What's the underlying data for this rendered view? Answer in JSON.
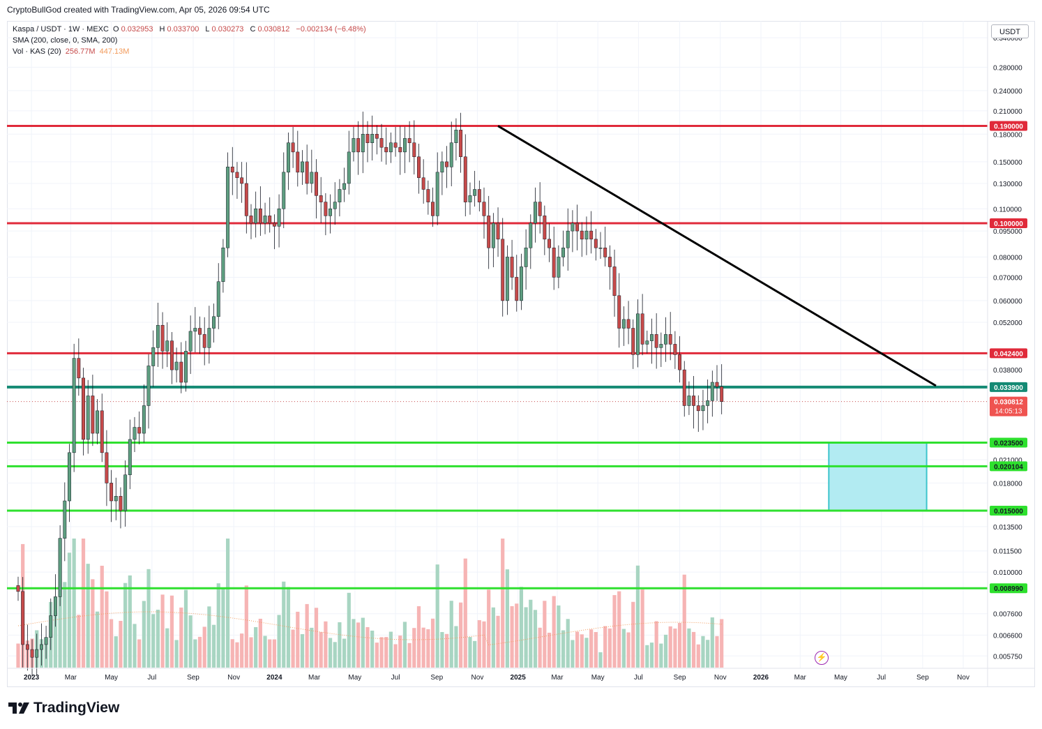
{
  "header": {
    "caption": "CryptoBullGod created with TradingView.com, Apr 05, 2026 09:54 UTC"
  },
  "legend": {
    "symbol_line": "Kaspa / USDT · 1W · MEXC",
    "open_label": "O",
    "open": "0.032953",
    "high_label": "H",
    "high": "0.033700",
    "low_label": "L",
    "low": "0.030273",
    "close_label": "C",
    "close": "0.030812",
    "change": "−0.002134 (−6.48%)",
    "sma_line": "SMA (200, close, 0, SMA, 200)",
    "vol_label": "Vol · KAS (20)",
    "vol_value": "256.77M",
    "vol_ma": "447.13M"
  },
  "price_scale": {
    "currency": "USDT",
    "countdown": "14:05:13"
  },
  "brand": {
    "name": "TradingView"
  },
  "colors": {
    "up": "#5e9e80",
    "down": "#c64a4a",
    "resistance": "#e02a3a",
    "support": "#2ee02e",
    "pivot": "#148a74",
    "box_fill": "#b2ebf2",
    "box_stroke": "#3dc4cc",
    "trendline": "#000000",
    "vol_up": "#a8d5c2",
    "vol_down": "#f6b4b4",
    "vol_ma": "#f29a5a"
  },
  "chart_data": {
    "type": "candlestick",
    "title": "Kaspa / USDT · 1W · MEXC",
    "y_scale": "log",
    "y_range": [
      0.0053,
      0.38
    ],
    "x_labels": [
      "2023",
      "Mar",
      "May",
      "Jul",
      "Sep",
      "Nov",
      "2024",
      "Mar",
      "May",
      "Jul",
      "Sep",
      "Nov",
      "2025",
      "Mar",
      "May",
      "Jul",
      "Sep",
      "Nov",
      "2026",
      "Mar",
      "May",
      "Jul",
      "Sep",
      "Nov"
    ],
    "y_ticks": [
      "0.340000",
      "0.280000",
      "0.240000",
      "0.210000",
      "0.180000",
      "0.150000",
      "0.130000",
      "0.110000",
      "0.095000",
      "0.080000",
      "0.070000",
      "0.060000",
      "0.052000",
      "0.038000",
      "0.021000",
      "0.018000",
      "0.013500",
      "0.011500",
      "0.010000",
      "0.007600",
      "0.006600",
      "0.005750"
    ],
    "horizontal_levels": [
      {
        "price": 0.19,
        "label": "0.190000",
        "role": "resistance"
      },
      {
        "price": 0.1,
        "label": "0.100000",
        "role": "resistance"
      },
      {
        "price": 0.0424,
        "label": "0.042400",
        "role": "resistance"
      },
      {
        "price": 0.0339,
        "label": "0.033900",
        "role": "pivot"
      },
      {
        "price": 0.0235,
        "label": "0.023500",
        "role": "support"
      },
      {
        "price": 0.020104,
        "label": "0.020104",
        "role": "support"
      },
      {
        "price": 0.015,
        "label": "0.015000",
        "role": "support"
      },
      {
        "price": 0.00899,
        "label": "0.008990",
        "role": "support"
      }
    ],
    "last_price": {
      "price": 0.030812,
      "label": "0.030812"
    },
    "trendline": {
      "from": [
        "2024-12-02",
        0.19
      ],
      "to": [
        "2026-09-21",
        0.0342
      ]
    },
    "target_zone": {
      "x_from": "2026-04-13",
      "x_to": "2026-09-07",
      "price_top": 0.0235,
      "price_bottom": 0.015
    },
    "weekly_close": [
      0.0088,
      0.0062,
      0.006,
      0.0057,
      0.006,
      0.0062,
      0.0065,
      0.0075,
      0.0085,
      0.0125,
      0.016,
      0.022,
      0.041,
      0.036,
      0.024,
      0.032,
      0.025,
      0.029,
      0.022,
      0.018,
      0.016,
      0.0165,
      0.015,
      0.019,
      0.024,
      0.026,
      0.025,
      0.03,
      0.039,
      0.044,
      0.051,
      0.043,
      0.046,
      0.038,
      0.04,
      0.035,
      0.043,
      0.049,
      0.05,
      0.048,
      0.044,
      0.05,
      0.054,
      0.068,
      0.085,
      0.145,
      0.14,
      0.135,
      0.13,
      0.105,
      0.1,
      0.11,
      0.1,
      0.105,
      0.1,
      0.098,
      0.11,
      0.14,
      0.17,
      0.16,
      0.14,
      0.15,
      0.13,
      0.14,
      0.12,
      0.115,
      0.105,
      0.11,
      0.115,
      0.125,
      0.13,
      0.16,
      0.175,
      0.16,
      0.18,
      0.17,
      0.18,
      0.175,
      0.165,
      0.16,
      0.17,
      0.165,
      0.16,
      0.175,
      0.17,
      0.155,
      0.135,
      0.125,
      0.115,
      0.105,
      0.14,
      0.15,
      0.145,
      0.17,
      0.185,
      0.155,
      0.115,
      0.12,
      0.125,
      0.115,
      0.105,
      0.085,
      0.1,
      0.09,
      0.06,
      0.08,
      0.07,
      0.06,
      0.075,
      0.085,
      0.1,
      0.115,
      0.105,
      0.09,
      0.085,
      0.07,
      0.08,
      0.085,
      0.095,
      0.1,
      0.095,
      0.09,
      0.095,
      0.09,
      0.085,
      0.085,
      0.08,
      0.075,
      0.062,
      0.05,
      0.053,
      0.05,
      0.042,
      0.055,
      0.045,
      0.046,
      0.048,
      0.044,
      0.045,
      0.048,
      0.045,
      0.042,
      0.038,
      0.03,
      0.032,
      0.03,
      0.029,
      0.03,
      0.031,
      0.035,
      0.034,
      0.0308
    ],
    "volume_ma_M": 447.13,
    "volume_last_M": 256.77
  }
}
